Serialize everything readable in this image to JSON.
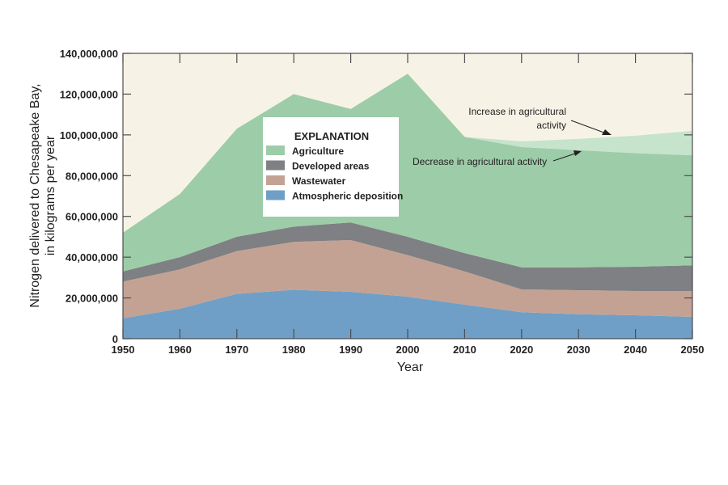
{
  "chart_data": {
    "type": "area",
    "stacked": true,
    "title": "",
    "xlabel": "Year",
    "ylabel": [
      "Nitrogen delivered to Chesapeake Bay,",
      "in kilograms per year"
    ],
    "x": [
      1950,
      1960,
      1970,
      1980,
      1990,
      2000,
      2010,
      2020,
      2030,
      2040,
      2050
    ],
    "xlim": [
      1950,
      2050
    ],
    "ylim": [
      0,
      140000000
    ],
    "yticks": [
      0,
      20000000,
      40000000,
      60000000,
      80000000,
      100000000,
      120000000,
      140000000
    ],
    "ytick_labels": [
      "0",
      "20,000,000",
      "40,000,000",
      "60,000,000",
      "80,000,000",
      "100,000,000",
      "120,000,000",
      "140,000,000"
    ],
    "xtick_labels": [
      "1950",
      "1960",
      "1970",
      "1980",
      "1990",
      "2000",
      "2010",
      "2020",
      "2030",
      "2040",
      "2050"
    ],
    "series": [
      {
        "name": "Atmospheric deposition",
        "color": "#6f9fc6",
        "values": [
          10000000,
          14700000,
          22000000,
          24000000,
          23000000,
          20600000,
          16700000,
          13000000,
          12000000,
          11500000,
          10700000
        ]
      },
      {
        "name": "Wastewater",
        "color": "#c3a294",
        "values": [
          18000000,
          19300000,
          21000000,
          23500000,
          25400000,
          20400000,
          16300000,
          11200000,
          11800000,
          11900000,
          12700000
        ]
      },
      {
        "name": "Developed areas",
        "color": "#7e8083",
        "values": [
          5000000,
          6000000,
          7000000,
          7500000,
          8600000,
          9000000,
          9000000,
          10800000,
          11200000,
          11900000,
          12600000
        ]
      },
      {
        "name": "Agriculture",
        "color": "#9dcca8",
        "values": [
          19000000,
          31000000,
          53000000,
          65000000,
          55700000,
          80000000,
          57000000,
          59000000,
          57500000,
          55700000,
          54000000
        ]
      },
      {
        "name": "Increase in agricultural activity (scenario)",
        "color": "#c6e3cc",
        "values": [
          null,
          null,
          null,
          null,
          null,
          null,
          0,
          2800000,
          5500000,
          8600000,
          12000000
        ]
      }
    ],
    "legend": {
      "title": "EXPLANATION",
      "placement": "center",
      "entries": [
        "Agriculture",
        "Developed areas",
        "Wastewater",
        "Atmospheric deposition"
      ]
    },
    "annotations": {
      "increase": [
        "Increase in agricultural",
        "activity"
      ],
      "decrease": "Decrease in agricultural activity"
    },
    "background_color": "#f6f3e6"
  }
}
